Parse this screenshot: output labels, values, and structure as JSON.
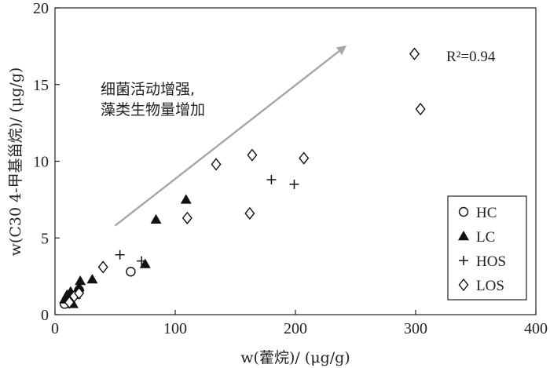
{
  "chart_data": {
    "type": "scatter",
    "xlabel": "w(藿烷)/ (μg/g)",
    "ylabel": "w(C30 4-甲基甾烷)/ (μg/g)",
    "xlim": [
      0,
      400
    ],
    "ylim": [
      0,
      20
    ],
    "x_ticks": [
      0,
      100,
      200,
      300,
      400
    ],
    "y_ticks": [
      0,
      5,
      10,
      15,
      20
    ],
    "grid": false,
    "legend_position": "bottom-right",
    "r2_text": "R²=0.94",
    "annotation_lines": [
      "细菌活动增强,",
      "藻类生物量增加"
    ],
    "arrow": {
      "from": [
        50,
        5.8
      ],
      "to": [
        240,
        17.4
      ],
      "color": "#a6a6a6"
    },
    "series": [
      {
        "name": "HC",
        "marker": "circle",
        "points": [
          [
            8,
            0.7
          ],
          [
            12,
            0.9
          ],
          [
            15,
            1.2
          ],
          [
            20,
            1.6
          ],
          [
            63,
            2.8
          ]
        ]
      },
      {
        "name": "LC",
        "marker": "triangle",
        "points": [
          [
            8,
            1.0
          ],
          [
            10,
            1.3
          ],
          [
            13,
            1.5
          ],
          [
            15,
            0.7
          ],
          [
            17,
            1.3
          ],
          [
            20,
            1.8
          ],
          [
            21,
            2.2
          ],
          [
            31,
            2.3
          ],
          [
            75,
            3.3
          ],
          [
            84,
            6.2
          ],
          [
            109,
            7.5
          ]
        ]
      },
      {
        "name": "HOS",
        "marker": "plus",
        "points": [
          [
            12,
            1.0
          ],
          [
            16,
            1.2
          ],
          [
            54,
            3.9
          ],
          [
            72,
            3.5
          ],
          [
            180,
            8.8
          ],
          [
            199,
            8.5
          ]
        ]
      },
      {
        "name": "LOS",
        "marker": "diamond",
        "points": [
          [
            12,
            0.8
          ],
          [
            16,
            1.2
          ],
          [
            20,
            1.4
          ],
          [
            40,
            3.1
          ],
          [
            110,
            6.3
          ],
          [
            134,
            9.8
          ],
          [
            162,
            6.6
          ],
          [
            164,
            10.4
          ],
          [
            207,
            10.2
          ],
          [
            299,
            17.0
          ],
          [
            304,
            13.4
          ]
        ]
      }
    ]
  }
}
